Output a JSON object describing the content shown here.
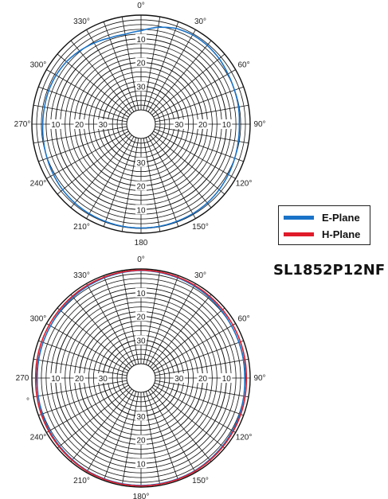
{
  "model": "SL1852P12NF",
  "legend": [
    {
      "label": "E-Plane",
      "color": "#1a73c8"
    },
    {
      "label": "H-Plane",
      "color": "#e01b2a"
    }
  ],
  "chart_data": [
    {
      "type": "polar",
      "angle_labels": [
        "0°",
        "30°",
        "60°",
        "90°",
        "120°",
        "150°",
        "180",
        "210°",
        "240°",
        "270°",
        "300°",
        "330°"
      ],
      "radial_labels": [
        "10",
        "20",
        "30"
      ],
      "series": [
        {
          "name": "E-Plane",
          "color": "#1a73c8",
          "angles": [
            0,
            10,
            20,
            30,
            40,
            50,
            60,
            70,
            80,
            90,
            100,
            110,
            120,
            130,
            140,
            150,
            160,
            170,
            180,
            190,
            200,
            210,
            220,
            230,
            240,
            250,
            260,
            270,
            280,
            290,
            300,
            310,
            320,
            330,
            340,
            350
          ],
          "values_db": [
            -6.6,
            -4.5,
            -3,
            -2.5,
            -2.6,
            -3,
            -3.7,
            -4.1,
            -4.3,
            -4.6,
            -4.4,
            -4,
            -3.5,
            -3,
            -2.6,
            -2.4,
            -2.3,
            -2.2,
            -2.2,
            -2.2,
            -2.3,
            -2.4,
            -2.6,
            -2.9,
            -3.4,
            -3.9,
            -4.3,
            -4.6,
            -4.7,
            -4.6,
            -4.7,
            -5,
            -5.7,
            -6.5,
            -7.3,
            -7.5
          ]
        },
        {
          "name": "H-Plane",
          "color": "#e01b2a",
          "values_db": []
        }
      ]
    },
    {
      "type": "polar",
      "angle_labels": [
        "0°",
        "30°",
        "60°",
        "90°",
        "120°",
        "150°",
        "180°",
        "210°",
        "240°",
        "270",
        "300°",
        "330°"
      ],
      "radial_labels": [
        "10",
        "20",
        "30"
      ],
      "extra_label": "°",
      "series": [
        {
          "name": "E-Plane",
          "color": "#1a73c8",
          "angles": [
            0,
            30,
            60,
            90,
            120,
            150,
            180,
            210,
            240,
            270,
            300,
            330
          ],
          "values_db": [
            -0.6,
            -1.2,
            -2,
            -2.3,
            -1.5,
            -0.8,
            -0.7,
            -0.8,
            -1.5,
            -2.3,
            -2,
            -1.2
          ]
        },
        {
          "name": "H-Plane",
          "color": "#e01b2a",
          "angles": [
            0,
            30,
            60,
            90,
            120,
            150,
            180,
            210,
            240,
            270,
            300,
            330
          ],
          "values_db": [
            -0.5,
            -0.8,
            -1.3,
            -1.6,
            -1.1,
            -0.6,
            -0.5,
            -0.6,
            -1.1,
            -1.6,
            -1.3,
            -0.8
          ]
        }
      ]
    }
  ]
}
